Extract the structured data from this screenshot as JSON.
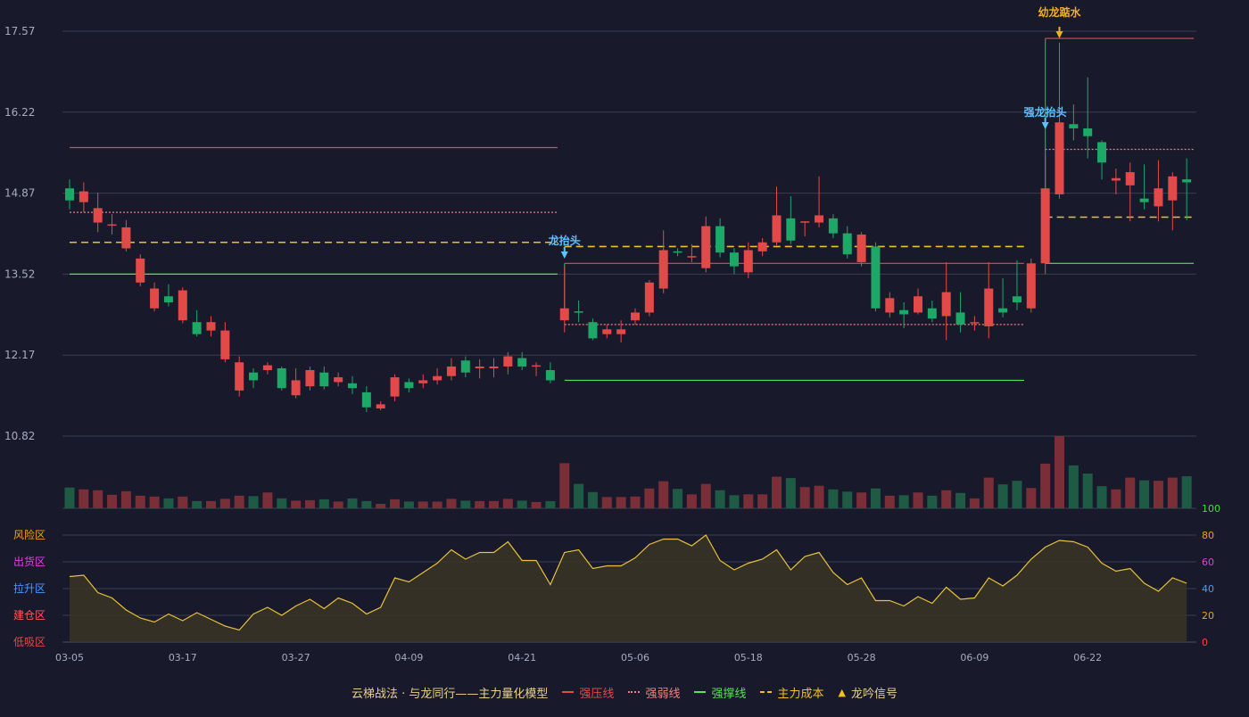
{
  "chart_data": {
    "type": "candlestick",
    "price_axis": {
      "ticks": [
        "17.57",
        "16.22",
        "14.87",
        "13.52",
        "12.17",
        "10.82"
      ],
      "ylim": [
        10.82,
        17.57
      ]
    },
    "x_ticks": [
      "03-05",
      "03-17",
      "03-27",
      "04-09",
      "04-21",
      "05-06",
      "05-18",
      "05-28",
      "06-09",
      "06-22"
    ],
    "candles": [
      [
        14.95,
        14.75,
        15.1,
        14.6
      ],
      [
        14.72,
        14.9,
        15.05,
        14.55
      ],
      [
        14.38,
        14.62,
        14.88,
        14.22
      ],
      [
        14.33,
        14.35,
        14.52,
        14.18
      ],
      [
        13.95,
        14.3,
        14.42,
        13.9
      ],
      [
        13.38,
        13.78,
        13.85,
        13.32
      ],
      [
        12.95,
        13.28,
        13.38,
        12.9
      ],
      [
        13.15,
        13.05,
        13.35,
        12.98
      ],
      [
        12.75,
        13.25,
        13.3,
        12.7
      ],
      [
        12.72,
        12.52,
        12.92,
        12.48
      ],
      [
        12.58,
        12.72,
        12.82,
        12.48
      ],
      [
        12.1,
        12.58,
        12.72,
        12.05
      ],
      [
        11.58,
        12.05,
        12.15,
        11.48
      ],
      [
        11.88,
        11.75,
        11.95,
        11.62
      ],
      [
        11.92,
        12.0,
        12.05,
        11.85
      ],
      [
        11.95,
        11.62,
        11.98,
        11.58
      ],
      [
        11.5,
        11.75,
        11.95,
        11.45
      ],
      [
        11.65,
        11.92,
        11.98,
        11.58
      ],
      [
        11.88,
        11.65,
        11.98,
        11.6
      ],
      [
        11.72,
        11.8,
        11.88,
        11.65
      ],
      [
        11.7,
        11.62,
        11.82,
        11.52
      ],
      [
        11.55,
        11.3,
        11.65,
        11.22
      ],
      [
        11.28,
        11.35,
        11.4,
        11.25
      ],
      [
        11.48,
        11.8,
        11.85,
        11.4
      ],
      [
        11.72,
        11.62,
        11.78,
        11.55
      ],
      [
        11.7,
        11.75,
        11.85,
        11.62
      ],
      [
        11.75,
        11.82,
        11.95,
        11.68
      ],
      [
        11.82,
        11.98,
        12.12,
        11.75
      ],
      [
        12.08,
        11.88,
        12.15,
        11.8
      ],
      [
        11.95,
        11.98,
        12.1,
        11.78
      ],
      [
        11.95,
        11.98,
        12.12,
        11.8
      ],
      [
        11.98,
        12.15,
        12.22,
        11.85
      ],
      [
        12.12,
        11.98,
        12.22,
        11.92
      ],
      [
        11.98,
        12.0,
        12.05,
        11.82
      ],
      [
        11.92,
        11.75,
        12.05,
        11.7
      ],
      [
        12.75,
        12.95,
        13.65,
        12.55
      ],
      [
        12.9,
        12.88,
        13.08,
        12.72
      ],
      [
        12.72,
        12.45,
        12.78,
        12.42
      ],
      [
        12.52,
        12.6,
        12.68,
        12.45
      ],
      [
        12.52,
        12.6,
        12.75,
        12.38
      ],
      [
        12.75,
        12.88,
        12.95,
        12.68
      ],
      [
        12.88,
        13.38,
        13.42,
        12.82
      ],
      [
        13.28,
        13.92,
        14.25,
        13.2
      ],
      [
        13.9,
        13.88,
        13.95,
        13.82
      ],
      [
        13.8,
        13.82,
        14.02,
        13.72
      ],
      [
        13.62,
        14.32,
        14.48,
        13.55
      ],
      [
        14.32,
        13.88,
        14.45,
        13.8
      ],
      [
        13.88,
        13.65,
        13.95,
        13.52
      ],
      [
        13.55,
        13.92,
        14.05,
        13.45
      ],
      [
        13.9,
        14.05,
        14.12,
        13.82
      ],
      [
        14.05,
        14.5,
        14.98,
        14.0
      ],
      [
        14.45,
        14.08,
        14.82,
        14.02
      ],
      [
        14.38,
        14.4,
        14.4,
        14.15
      ],
      [
        14.38,
        14.5,
        15.15,
        14.3
      ],
      [
        14.45,
        14.2,
        14.52,
        14.12
      ],
      [
        14.2,
        13.85,
        14.32,
        13.78
      ],
      [
        13.72,
        14.18,
        14.22,
        13.65
      ],
      [
        13.98,
        12.95,
        14.05,
        12.9
      ],
      [
        12.88,
        13.12,
        13.22,
        12.8
      ],
      [
        12.92,
        12.85,
        13.05,
        12.62
      ],
      [
        12.88,
        13.15,
        13.28,
        12.85
      ],
      [
        12.95,
        12.78,
        13.08,
        12.72
      ],
      [
        12.82,
        13.22,
        13.72,
        12.42
      ],
      [
        12.88,
        12.68,
        13.22,
        12.55
      ],
      [
        12.72,
        12.72,
        12.82,
        12.58
      ],
      [
        12.65,
        13.28,
        13.72,
        12.45
      ],
      [
        12.95,
        12.88,
        13.45,
        12.8
      ],
      [
        13.15,
        13.05,
        13.75,
        12.92
      ],
      [
        12.95,
        13.7,
        13.78,
        12.88
      ],
      [
        13.7,
        14.95,
        15.5,
        13.52
      ],
      [
        14.85,
        16.05,
        17.38,
        14.78
      ],
      [
        16.02,
        15.95,
        16.35,
        15.75
      ],
      [
        15.95,
        15.82,
        16.8,
        15.45
      ],
      [
        15.72,
        15.38,
        15.75,
        15.1
      ],
      [
        15.08,
        15.12,
        15.28,
        14.85
      ],
      [
        15.0,
        15.22,
        15.38,
        14.4
      ],
      [
        14.78,
        14.72,
        15.35,
        14.6
      ],
      [
        14.65,
        14.95,
        15.42,
        14.4
      ],
      [
        14.75,
        15.15,
        15.22,
        14.25
      ],
      [
        15.1,
        15.05,
        15.45,
        14.42
      ]
    ],
    "volume": [
      46,
      42,
      40,
      30,
      38,
      28,
      26,
      22,
      26,
      16,
      16,
      21,
      28,
      27,
      35,
      22,
      17,
      18,
      20,
      15,
      22,
      16,
      10,
      20,
      15,
      15,
      15,
      21,
      17,
      16,
      16,
      21,
      17,
      14,
      16,
      100,
      54,
      36,
      25,
      25,
      26,
      44,
      60,
      43,
      31,
      54,
      40,
      29,
      31,
      31,
      70,
      67,
      47,
      50,
      42,
      37,
      35,
      44,
      28,
      29,
      35,
      28,
      40,
      34,
      22,
      68,
      53,
      61,
      45,
      99,
      160,
      95,
      77,
      49,
      42,
      68,
      62,
      61,
      68,
      71
    ],
    "indicator": {
      "name": "龙吟信号",
      "ylim": [
        0,
        100
      ],
      "ticks": [
        "0",
        "20",
        "40",
        "60",
        "80",
        "100"
      ],
      "zones": [
        "低吸区",
        "建仓区",
        "拉升区",
        "出货区",
        "风险区"
      ],
      "values": [
        49,
        50,
        37,
        33,
        24,
        18,
        15,
        21,
        16,
        22,
        17,
        12,
        9,
        21,
        26,
        20,
        27,
        32,
        25,
        33,
        29,
        21,
        26,
        48,
        45,
        52,
        59,
        69,
        62,
        67,
        67,
        75,
        61,
        61,
        43,
        67,
        69,
        55,
        57,
        57,
        63,
        73,
        77,
        77,
        72,
        80,
        61,
        54,
        59,
        62,
        69,
        54,
        64,
        67,
        52,
        43,
        48,
        31,
        31,
        27,
        34,
        29,
        41,
        32,
        33,
        48,
        42,
        50,
        62,
        71,
        76,
        75,
        71,
        59,
        53,
        55,
        44,
        38,
        48,
        44
      ]
    },
    "signals": [
      {
        "label": "龙抬头",
        "type": "blue"
      },
      {
        "label": "强龙抬头",
        "type": "blue"
      },
      {
        "label": "幼龙踮水",
        "type": "gold"
      }
    ],
    "levels": [
      {
        "from": 0,
        "to": 34,
        "strong_pressure": 15.63,
        "weak": 14.55,
        "cost": 14.05,
        "support": 13.52
      },
      {
        "from": 35,
        "to": 67,
        "strong_pressure": 13.7,
        "weak": 12.68,
        "cost": 13.98,
        "support": 11.75
      },
      {
        "from": 69,
        "to": 79,
        "strong_pressure": 17.45,
        "weak": 15.6,
        "cost": 14.47,
        "support": 13.7
      }
    ],
    "legend": {
      "title": "云梯战法 · 与龙同行——主力量化模型",
      "items": [
        {
          "label": "强压线",
          "color": "#e24a4a",
          "style": "solid"
        },
        {
          "label": "强弱线",
          "color": "#f08080",
          "style": "dotted"
        },
        {
          "label": "强撑线",
          "color": "#55e055",
          "style": "solid"
        },
        {
          "label": "主力成本",
          "color": "#f0c020",
          "style": "dashed"
        },
        {
          "label": "龙吟信号",
          "color": "#f0c020",
          "style": "triangle"
        }
      ]
    },
    "colors": {
      "up": "#e24a4a",
      "down": "#1ea868",
      "volume_up": "#7a2e38",
      "volume_down": "#1f5a45",
      "line": "#e8c23a"
    }
  }
}
